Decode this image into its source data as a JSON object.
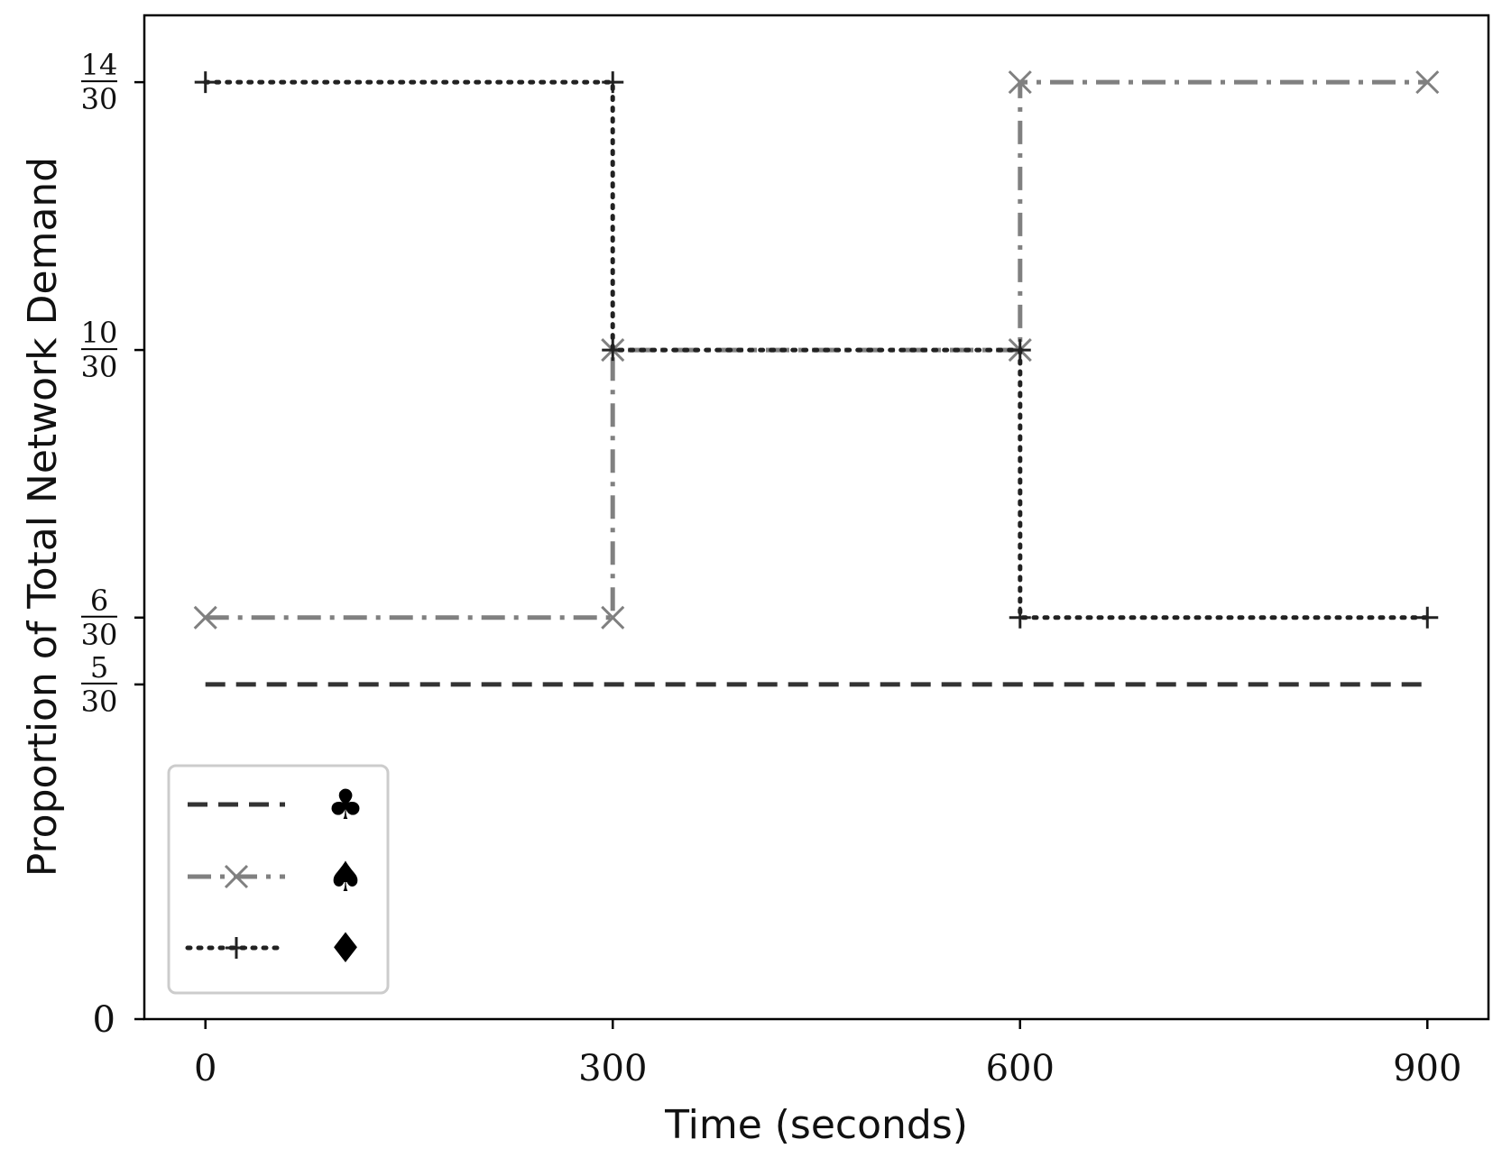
{
  "chart_data": {
    "type": "line",
    "title": "",
    "xlabel": "Time (seconds)",
    "ylabel": "Proportion of Total Network Demand",
    "xlim": [
      -45,
      945
    ],
    "ylim": [
      0,
      0.5
    ],
    "grid": false,
    "legend_position": "lower-left",
    "x_ticks": [
      {
        "value": 0,
        "label": "0"
      },
      {
        "value": 300,
        "label": "300"
      },
      {
        "value": 600,
        "label": "600"
      },
      {
        "value": 900,
        "label": "900"
      }
    ],
    "y_ticks": [
      {
        "value": 0,
        "label": "0"
      },
      {
        "value": 0.1667,
        "num": "5",
        "den": "30"
      },
      {
        "value": 0.2,
        "num": "6",
        "den": "30"
      },
      {
        "value": 0.3333,
        "num": "10",
        "den": "30"
      },
      {
        "value": 0.4667,
        "num": "14",
        "den": "30"
      }
    ],
    "series": [
      {
        "name": "♣",
        "color": "#333333",
        "style": "dashed",
        "marker": "none",
        "x": [
          0,
          900
        ],
        "y": [
          0.1667,
          0.1667
        ],
        "markers": []
      },
      {
        "name": "♠",
        "color": "#808080",
        "style": "dashdot",
        "marker": "x",
        "x": [
          0,
          300,
          300,
          600,
          600,
          900
        ],
        "y": [
          0.2,
          0.2,
          0.3333,
          0.3333,
          0.4667,
          0.4667
        ],
        "markers": [
          [
            0,
            0.2
          ],
          [
            300,
            0.2
          ],
          [
            300,
            0.3333
          ],
          [
            600,
            0.3333
          ],
          [
            600,
            0.4667
          ],
          [
            900,
            0.4667
          ]
        ]
      },
      {
        "name": "♦",
        "color": "#222222",
        "style": "dotted",
        "marker": "plus",
        "x": [
          0,
          300,
          300,
          600,
          600,
          900
        ],
        "y": [
          0.4667,
          0.4667,
          0.3333,
          0.3333,
          0.2,
          0.2
        ],
        "markers": [
          [
            0,
            0.4667
          ],
          [
            300,
            0.4667
          ],
          [
            300,
            0.3333
          ],
          [
            600,
            0.3333
          ],
          [
            600,
            0.2
          ],
          [
            900,
            0.2
          ]
        ]
      }
    ]
  }
}
